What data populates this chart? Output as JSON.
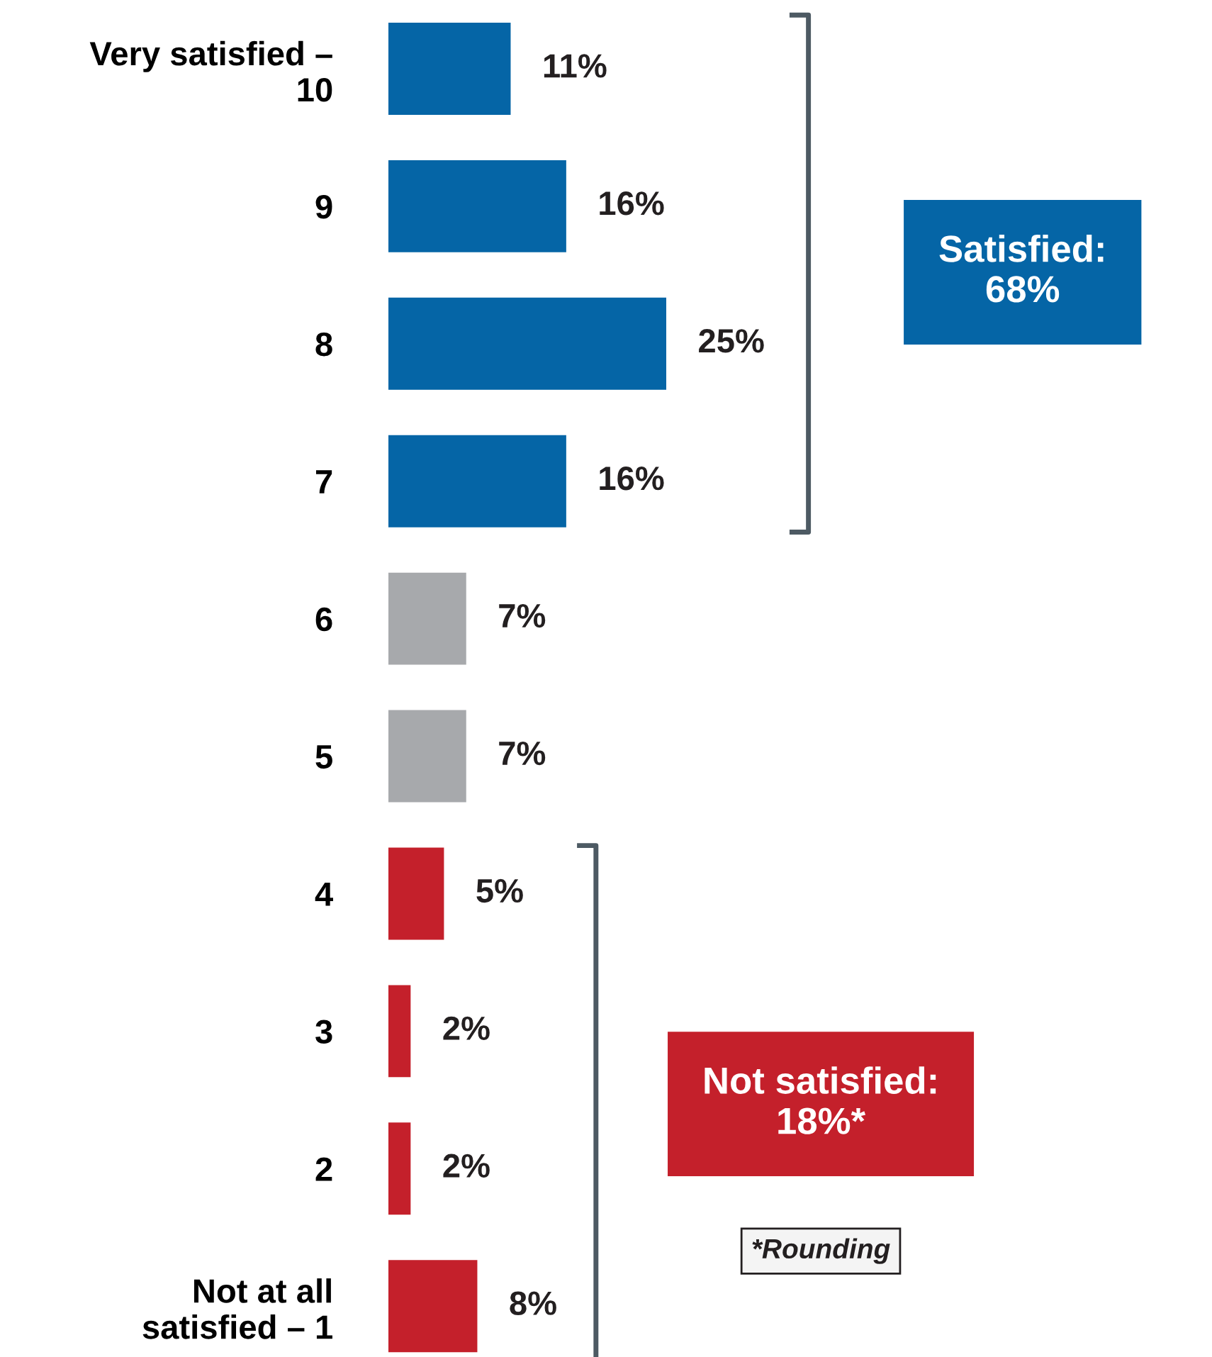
{
  "chart_data": {
    "type": "bar",
    "orientation": "horizontal",
    "categories": [
      "Very satisfied –\n10",
      "9",
      "8",
      "7",
      "6",
      "5",
      "4",
      "3",
      "2",
      "Not at all\nsatisfied – 1"
    ],
    "values": [
      11,
      16,
      25,
      16,
      7,
      7,
      5,
      2,
      2,
      8
    ],
    "colors": [
      "#0565a6",
      "#0565a6",
      "#0565a6",
      "#0565a6",
      "#a7a9ac",
      "#a7a9ac",
      "#c4202b",
      "#c4202b",
      "#c4202b",
      "#c4202b"
    ],
    "value_labels": [
      "11%",
      "16%",
      "25%",
      "16%",
      "7%",
      "7%",
      "5%",
      "2%",
      "2%",
      "8%"
    ],
    "annotations": [
      "Satisfied:\n68%",
      "Not satisfied:\n18%*",
      "*Rounding"
    ],
    "grid": false
  }
}
